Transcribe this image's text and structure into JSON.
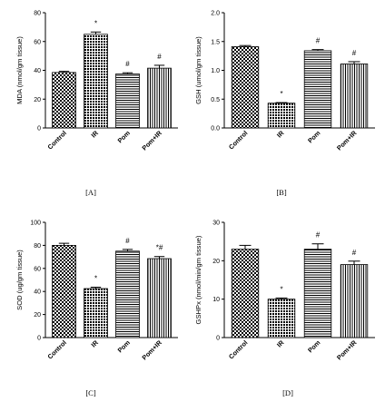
{
  "chart_data": [
    {
      "type": "bar",
      "panel_label": "[A]",
      "categories": [
        "Control",
        "IR",
        "Pom",
        "Pom+IR"
      ],
      "values": [
        38.5,
        65.0,
        37.5,
        41.5
      ],
      "errors": [
        0.8,
        1.6,
        0.8,
        2.0
      ],
      "annotations": [
        "",
        "*",
        "#",
        "#"
      ],
      "patterns": [
        "checker",
        "dots-dense",
        "hlines",
        "vlines"
      ],
      "ylabel": "MDA (nmol/gm tissue)",
      "xlabel": "",
      "ylim": [
        0,
        80
      ],
      "yticks": [
        "0",
        "20",
        "40",
        "60",
        "80"
      ]
    },
    {
      "type": "bar",
      "panel_label": "[B]",
      "categories": [
        "Control",
        "IR",
        "Pom",
        "Pom+IR"
      ],
      "values": [
        1.41,
        0.43,
        1.34,
        1.11
      ],
      "errors": [
        0.02,
        0.01,
        0.02,
        0.04
      ],
      "annotations": [
        "",
        "*",
        "#",
        "#"
      ],
      "patterns": [
        "checker",
        "dots-dense",
        "hlines",
        "vlines"
      ],
      "ylabel": "GSH (umol/gm tissue)",
      "xlabel": "",
      "ylim": [
        0,
        2.0
      ],
      "yticks": [
        "0.0",
        "0.5",
        "1.0",
        "1.5",
        "2.0"
      ]
    },
    {
      "type": "bar",
      "panel_label": "[C]",
      "categories": [
        "Control",
        "IR",
        "Pom",
        "Pom+IR"
      ],
      "values": [
        80.0,
        42.5,
        75.0,
        68.5
      ],
      "errors": [
        1.8,
        1.2,
        1.5,
        1.8
      ],
      "annotations": [
        "",
        "*",
        "#",
        "*#"
      ],
      "patterns": [
        "checker",
        "dots-dense",
        "hlines",
        "vlines"
      ],
      "ylabel": "SOD (ug/gm tissue)",
      "xlabel": "",
      "ylim": [
        0,
        100
      ],
      "yticks": [
        "0",
        "20",
        "40",
        "60",
        "80",
        "100"
      ]
    },
    {
      "type": "bar",
      "panel_label": "[D]",
      "categories": [
        "Control",
        "IR",
        "Pom",
        "Pom+IR"
      ],
      "values": [
        23.0,
        10.0,
        23.0,
        19.0
      ],
      "errors": [
        1.0,
        0.3,
        1.4,
        0.9
      ],
      "annotations": [
        "",
        "*",
        "#",
        "#"
      ],
      "patterns": [
        "checker",
        "dots-dense",
        "hlines",
        "vlines"
      ],
      "ylabel": "GSHPx (nmol/min/gm tissue)",
      "xlabel": "",
      "ylim": [
        0,
        30
      ],
      "yticks": [
        "0",
        "10",
        "20",
        "30"
      ]
    }
  ]
}
